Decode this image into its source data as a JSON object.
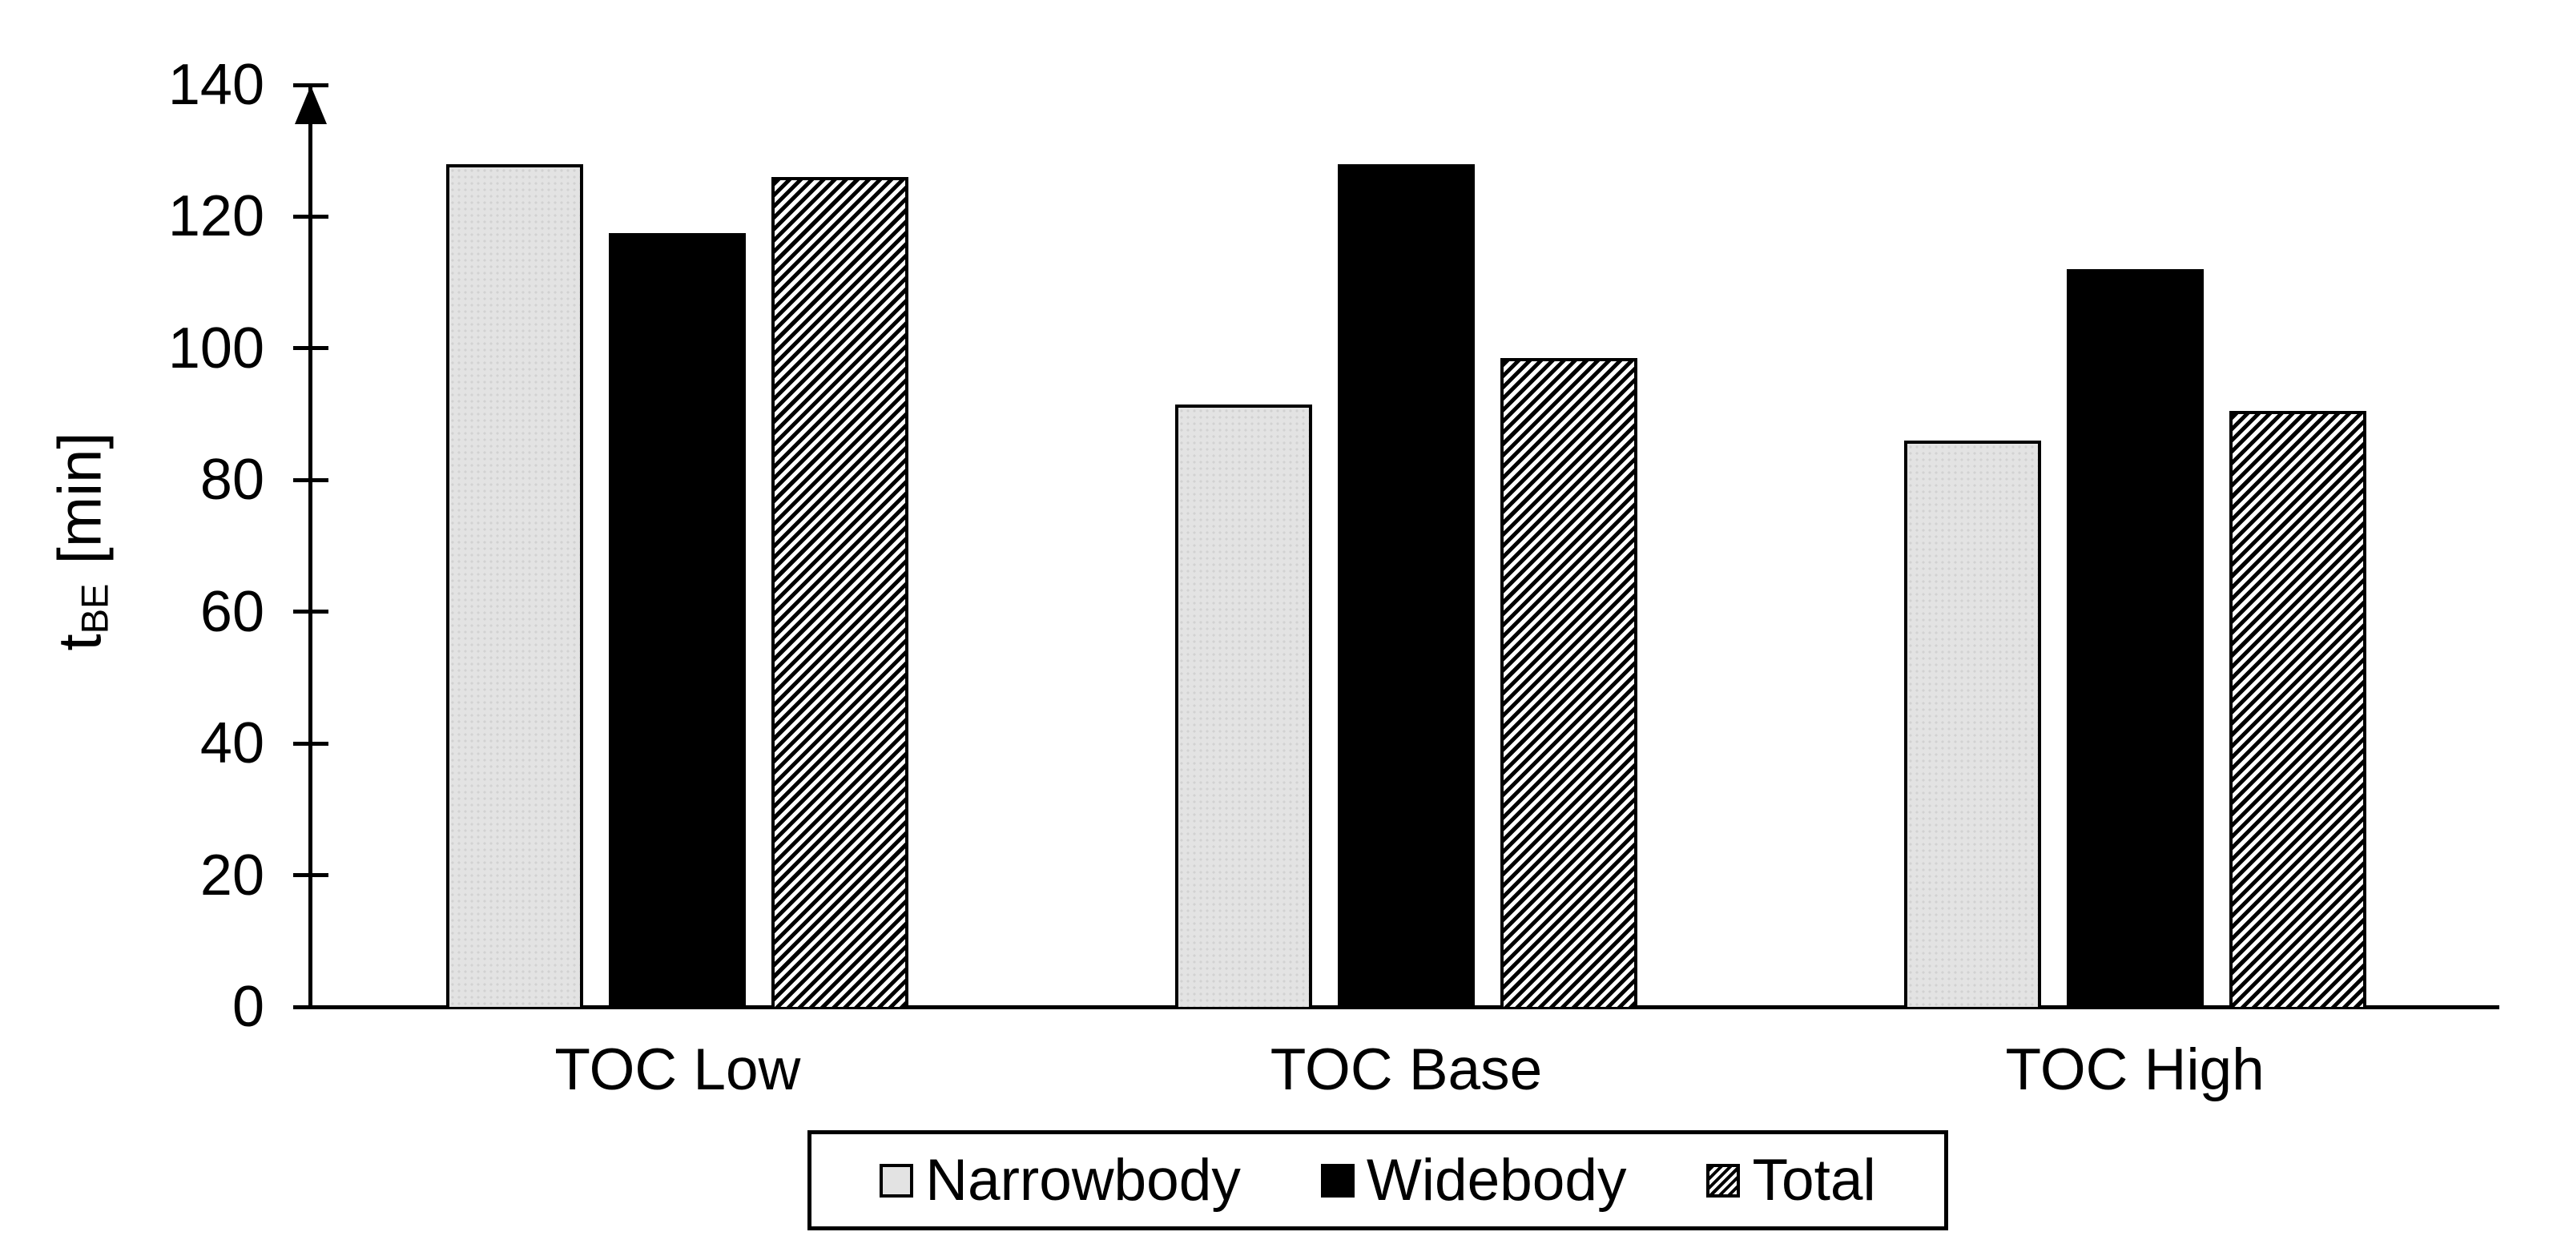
{
  "chart_data": {
    "type": "bar",
    "title": "",
    "categories": [
      "TOC Low",
      "TOC Base",
      "TOC High"
    ],
    "series": [
      {
        "name": "Narrowbody",
        "style": "narrowbody",
        "values": [
          128,
          91.5,
          86
        ]
      },
      {
        "name": "Widebody",
        "style": "widebody",
        "values": [
          117.5,
          128,
          112
        ]
      },
      {
        "name": "Total",
        "style": "total",
        "values": [
          126,
          98.5,
          90.5
        ]
      }
    ],
    "ylabel": {
      "main": "t",
      "sub": "BE",
      "unit": "[min]"
    },
    "xlabel": "",
    "ylim": [
      0,
      140
    ],
    "yticks": [
      0,
      20,
      40,
      60,
      80,
      100,
      120,
      140
    ],
    "grid": false,
    "legend_position": "bottom",
    "colors": {
      "narrowbody_fill": "#e3e3e3",
      "widebody_fill": "#000000",
      "total_hatch_fg": "#000000",
      "total_hatch_bg": "#ffffff",
      "axis": "#000000",
      "background": "#ffffff"
    }
  }
}
